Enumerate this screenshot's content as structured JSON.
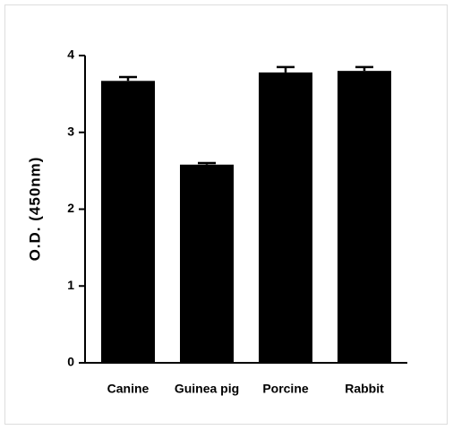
{
  "chart_data": {
    "type": "bar",
    "y_label": "O.D. (450nm)",
    "categories": [
      "Canine",
      "Guinea pig",
      "Porcine",
      "Rabbit"
    ],
    "values": [
      3.67,
      2.58,
      3.78,
      3.8
    ],
    "errors": [
      0.05,
      0.02,
      0.07,
      0.05
    ],
    "color": "#000000",
    "ylim": [
      0,
      4
    ],
    "yticks": [
      0,
      1,
      2,
      3,
      4
    ],
    "grid": false
  }
}
